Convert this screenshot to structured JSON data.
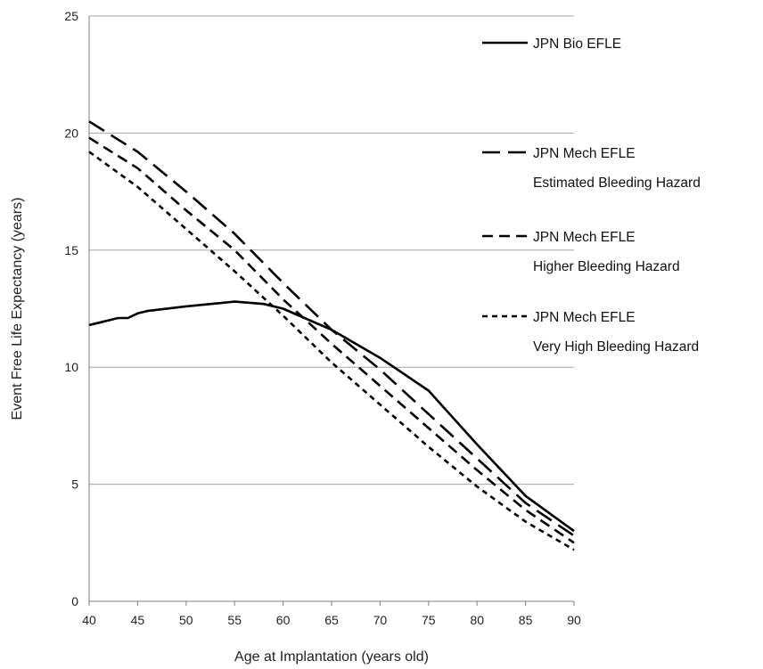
{
  "chart_data": {
    "type": "line",
    "xlabel": "Age at Implantation (years old)",
    "ylabel": "Event Free Life Expectancy (years)",
    "xlim": [
      40,
      90
    ],
    "ylim": [
      0,
      25
    ],
    "xticks": [
      "40",
      "45",
      "50",
      "55",
      "60",
      "65",
      "70",
      "75",
      "80",
      "85",
      "90"
    ],
    "yticks": [
      "0",
      "5",
      "10",
      "15",
      "20",
      "25"
    ],
    "grid": "horizontal",
    "legend_position": "right",
    "series": [
      {
        "name": "JPN Bio EFLE",
        "sublabel": "",
        "dash": "solid",
        "x": [
          40,
          41,
          42,
          43,
          44,
          45,
          46,
          50,
          55,
          58,
          60,
          65,
          70,
          75,
          80,
          85,
          90
        ],
        "y": [
          11.8,
          11.9,
          12.0,
          12.1,
          12.1,
          12.3,
          12.4,
          12.6,
          12.8,
          12.7,
          12.5,
          11.6,
          10.4,
          9.0,
          6.7,
          4.5,
          3.0
        ]
      },
      {
        "name": "JPN Mech EFLE",
        "sublabel": "Estimated Bleeding Hazard",
        "dash": "long",
        "x": [
          40,
          45,
          50,
          55,
          60,
          65,
          70,
          75,
          80,
          85,
          90
        ],
        "y": [
          20.5,
          19.2,
          17.5,
          15.7,
          13.6,
          11.6,
          9.9,
          8.0,
          6.1,
          4.2,
          2.8
        ]
      },
      {
        "name": "JPN Mech EFLE",
        "sublabel": "Higher Bleeding Hazard",
        "dash": "medium",
        "x": [
          40,
          45,
          50,
          55,
          60,
          65,
          70,
          75,
          80,
          85,
          90
        ],
        "y": [
          19.8,
          18.5,
          16.7,
          15.0,
          12.9,
          11.0,
          9.2,
          7.4,
          5.6,
          3.9,
          2.5
        ]
      },
      {
        "name": "JPN Mech EFLE",
        "sublabel": "Very High Bleeding Hazard",
        "dash": "short",
        "x": [
          40,
          45,
          50,
          55,
          60,
          65,
          70,
          75,
          80,
          85,
          90
        ],
        "y": [
          19.2,
          17.7,
          15.9,
          14.1,
          12.2,
          10.2,
          8.4,
          6.6,
          4.9,
          3.4,
          2.2
        ]
      }
    ]
  }
}
